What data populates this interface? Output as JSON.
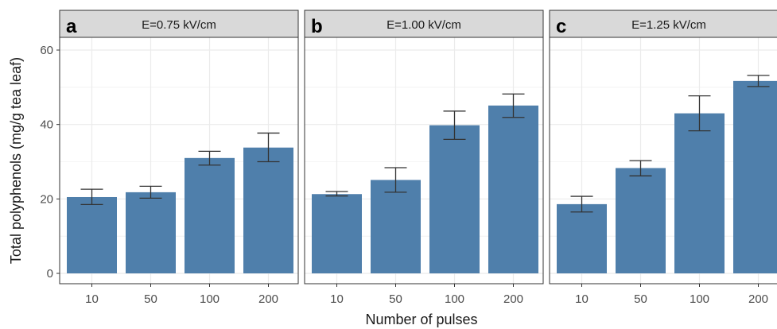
{
  "chart_data": {
    "type": "bar",
    "ylabel": "Total polyphenols (mg/g tea leaf)",
    "xlabel": "Number of pulses",
    "ylim": [
      0,
      60
    ],
    "yticks": [
      0,
      20,
      40,
      60
    ],
    "categories": [
      "10",
      "50",
      "100",
      "200"
    ],
    "grid": true,
    "colors": {
      "bar": "#4f7fab",
      "strip": "#d9d9d9",
      "grid": "#ebebeb"
    },
    "panels": [
      {
        "tag": "a",
        "strip_label": "E=0.75 kV/cm",
        "values": [
          20.5,
          21.8,
          31.0,
          33.8
        ],
        "err_low": [
          18.5,
          20.2,
          29.1,
          30.0
        ],
        "err_high": [
          22.6,
          23.4,
          32.8,
          37.7
        ]
      },
      {
        "tag": "b",
        "strip_label": "E=1.00 kV/cm",
        "values": [
          21.3,
          25.1,
          39.8,
          45.1
        ],
        "err_low": [
          20.8,
          21.8,
          36.0,
          41.9
        ],
        "err_high": [
          22.0,
          28.4,
          43.6,
          48.2
        ]
      },
      {
        "tag": "c",
        "strip_label": "E=1.25 kV/cm",
        "values": [
          18.6,
          28.3,
          43.0,
          51.7
        ],
        "err_low": [
          16.5,
          26.2,
          38.3,
          50.2
        ],
        "err_high": [
          20.7,
          30.3,
          47.7,
          53.2
        ]
      }
    ]
  }
}
